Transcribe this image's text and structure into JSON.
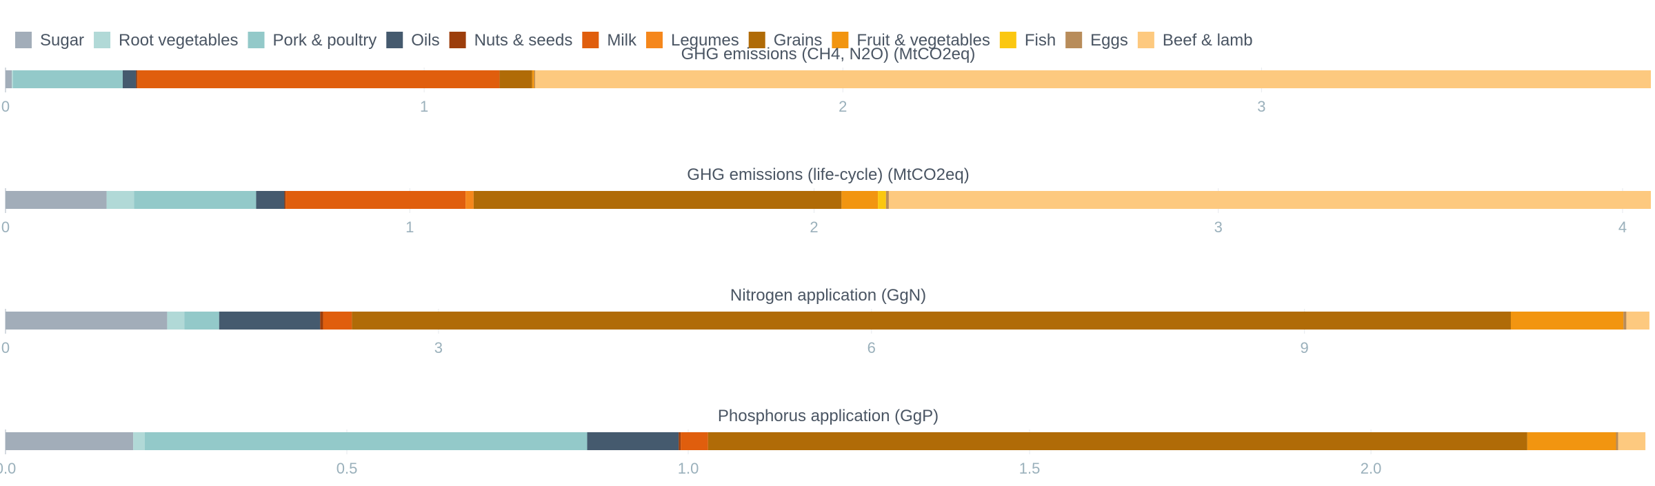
{
  "chart_data": {
    "type": "bar",
    "orientation": "horizontal",
    "stacked": true,
    "legend_placement": "top-left",
    "grid": true,
    "legend": [
      {
        "name": "Sugar",
        "color": "#a2adb9"
      },
      {
        "name": "Root vegetables",
        "color": "#b1d9d7"
      },
      {
        "name": "Pork & poultry",
        "color": "#93c9c9"
      },
      {
        "name": "Oils",
        "color": "#455a6e"
      },
      {
        "name": "Nuts & seeds",
        "color": "#9c3e0c"
      },
      {
        "name": "Milk",
        "color": "#e05e0d"
      },
      {
        "name": "Legumes",
        "color": "#f5871c"
      },
      {
        "name": "Grains",
        "color": "#b06b07"
      },
      {
        "name": "Fruit & vegetables",
        "color": "#f29510"
      },
      {
        "name": "Fish",
        "color": "#fbc710"
      },
      {
        "name": "Eggs",
        "color": "#b88c5a"
      },
      {
        "name": "Beef & lamb",
        "color": "#fdc97f"
      }
    ],
    "panels": [
      {
        "title": "GHG emissions (CH4, N2O) (MtCO2eq)",
        "xlim": [
          0,
          3.93
        ],
        "ticks": [
          0,
          1,
          2,
          3
        ],
        "tick_labels": [
          "0",
          "1",
          "2",
          "3"
        ],
        "segments": [
          {
            "series": "Sugar",
            "value": 0.015
          },
          {
            "series": "Root vegetables",
            "value": 0.003
          },
          {
            "series": "Pork & poultry",
            "value": 0.262
          },
          {
            "series": "Oils",
            "value": 0.032
          },
          {
            "series": "Nuts & seeds",
            "value": 0.003
          },
          {
            "series": "Milk",
            "value": 0.865
          },
          {
            "series": "Legumes",
            "value": 0.0
          },
          {
            "series": "Grains",
            "value": 0.078
          },
          {
            "series": "Fruit & vegetables",
            "value": 0.005
          },
          {
            "series": "Fish",
            "value": 0.0
          },
          {
            "series": "Eggs",
            "value": 0.002
          },
          {
            "series": "Beef & lamb",
            "value": 2.665
          }
        ]
      },
      {
        "title": "GHG emissions (life-cycle) (MtCO2eq)",
        "xlim": [
          0,
          4.07
        ],
        "ticks": [
          0,
          1,
          2,
          3,
          4
        ],
        "tick_labels": [
          "0",
          "1",
          "2",
          "3",
          "4"
        ],
        "segments": [
          {
            "series": "Sugar",
            "value": 0.25
          },
          {
            "series": "Root vegetables",
            "value": 0.068
          },
          {
            "series": "Pork & poultry",
            "value": 0.302
          },
          {
            "series": "Oils",
            "value": 0.07
          },
          {
            "series": "Nuts & seeds",
            "value": 0.003
          },
          {
            "series": "Milk",
            "value": 0.445
          },
          {
            "series": "Legumes",
            "value": 0.02
          },
          {
            "series": "Grains",
            "value": 0.91
          },
          {
            "series": "Fruit & vegetables",
            "value": 0.09
          },
          {
            "series": "Fish",
            "value": 0.02
          },
          {
            "series": "Eggs",
            "value": 0.007
          },
          {
            "series": "Beef & lamb",
            "value": 1.885
          }
        ]
      },
      {
        "title": "Nitrogen application (GgN)",
        "xlim": [
          0,
          11.4
        ],
        "ticks": [
          0,
          3,
          6,
          9
        ],
        "tick_labels": [
          "0",
          "3",
          "6",
          "9"
        ],
        "segments": [
          {
            "series": "Sugar",
            "value": 1.12
          },
          {
            "series": "Root vegetables",
            "value": 0.12
          },
          {
            "series": "Pork & poultry",
            "value": 0.24
          },
          {
            "series": "Oils",
            "value": 0.7
          },
          {
            "series": "Nuts & seeds",
            "value": 0.02
          },
          {
            "series": "Milk",
            "value": 0.2
          },
          {
            "series": "Legumes",
            "value": 0.0
          },
          {
            "series": "Grains",
            "value": 8.03
          },
          {
            "series": "Fruit & vegetables",
            "value": 0.78
          },
          {
            "series": "Fish",
            "value": 0.0
          },
          {
            "series": "Eggs",
            "value": 0.02
          },
          {
            "series": "Beef & lamb",
            "value": 0.16
          }
        ]
      },
      {
        "title": "Phosphorus application (GgP)",
        "xlim": [
          0,
          2.41
        ],
        "ticks": [
          0,
          0.5,
          1,
          1.5,
          2
        ],
        "tick_labels": [
          "0.0",
          "0.5",
          "1.0",
          "1.5",
          "2.0"
        ],
        "segments": [
          {
            "series": "Sugar",
            "value": 0.187
          },
          {
            "series": "Root vegetables",
            "value": 0.017
          },
          {
            "series": "Pork & poultry",
            "value": 0.648
          },
          {
            "series": "Oils",
            "value": 0.134
          },
          {
            "series": "Nuts & seeds",
            "value": 0.003
          },
          {
            "series": "Milk",
            "value": 0.04
          },
          {
            "series": "Legumes",
            "value": 0.0
          },
          {
            "series": "Grains",
            "value": 1.2
          },
          {
            "series": "Fruit & vegetables",
            "value": 0.13
          },
          {
            "series": "Fish",
            "value": 0.0
          },
          {
            "series": "Eggs",
            "value": 0.003
          },
          {
            "series": "Beef & lamb",
            "value": 0.04
          }
        ]
      }
    ]
  }
}
